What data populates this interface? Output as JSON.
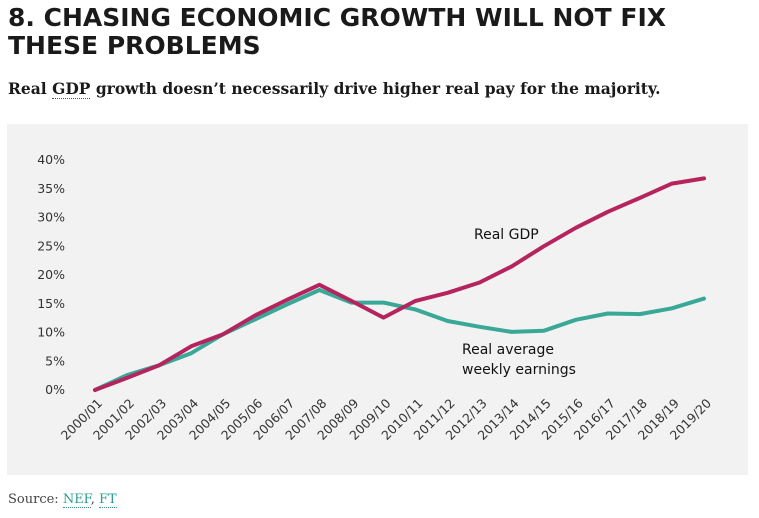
{
  "header": {
    "title": "8. CHASING ECONOMIC GROWTH WILL NOT FIX THESE PROBLEMS",
    "subtitle_prefix": "Real ",
    "subtitle_abbr": "GDP",
    "subtitle_suffix": " growth doesn’t necessarily drive higher real pay for the majority."
  },
  "source": {
    "label": "Source: ",
    "links": [
      "NEF",
      "FT"
    ],
    "separator": ", "
  },
  "chart_data": {
    "type": "line",
    "title": "",
    "xlabel": "",
    "ylabel": "",
    "ylim": [
      0,
      40
    ],
    "yticks": [
      "0%",
      "5%",
      "10%",
      "15%",
      "20%",
      "25%",
      "30%",
      "35%",
      "40%"
    ],
    "grid": false,
    "categories": [
      "2000/01",
      "2001/02",
      "2002/03",
      "2003/04",
      "2004/05",
      "2005/06",
      "2006/07",
      "2007/08",
      "2008/09",
      "2009/10",
      "2010/11",
      "2011/12",
      "2012/13",
      "2013/14",
      "2014/15",
      "2015/16",
      "2016/17",
      "2017/18",
      "2018/19",
      "2019/20"
    ],
    "series": [
      {
        "name": "Real GDP",
        "color": "#b5245d",
        "values": [
          0,
          2.1,
          4.3,
          7.6,
          9.7,
          13.0,
          15.7,
          18.3,
          15.5,
          12.6,
          15.5,
          16.9,
          18.7,
          21.5,
          25.0,
          28.2,
          31.0,
          33.4,
          35.9,
          36.8
        ]
      },
      {
        "name": "Real average weekly earnings",
        "color": "#3aa896",
        "values": [
          0,
          2.6,
          4.3,
          6.4,
          9.7,
          12.3,
          14.9,
          17.4,
          15.2,
          15.2,
          14.0,
          12.0,
          11.0,
          10.1,
          10.3,
          12.2,
          13.3,
          13.2,
          14.2,
          15.9
        ]
      }
    ],
    "annotations": [
      {
        "text": "Real GDP",
        "series": 0
      },
      {
        "text": "Real average",
        "series": 1
      },
      {
        "text": "weekly earnings",
        "series": 1
      }
    ]
  }
}
